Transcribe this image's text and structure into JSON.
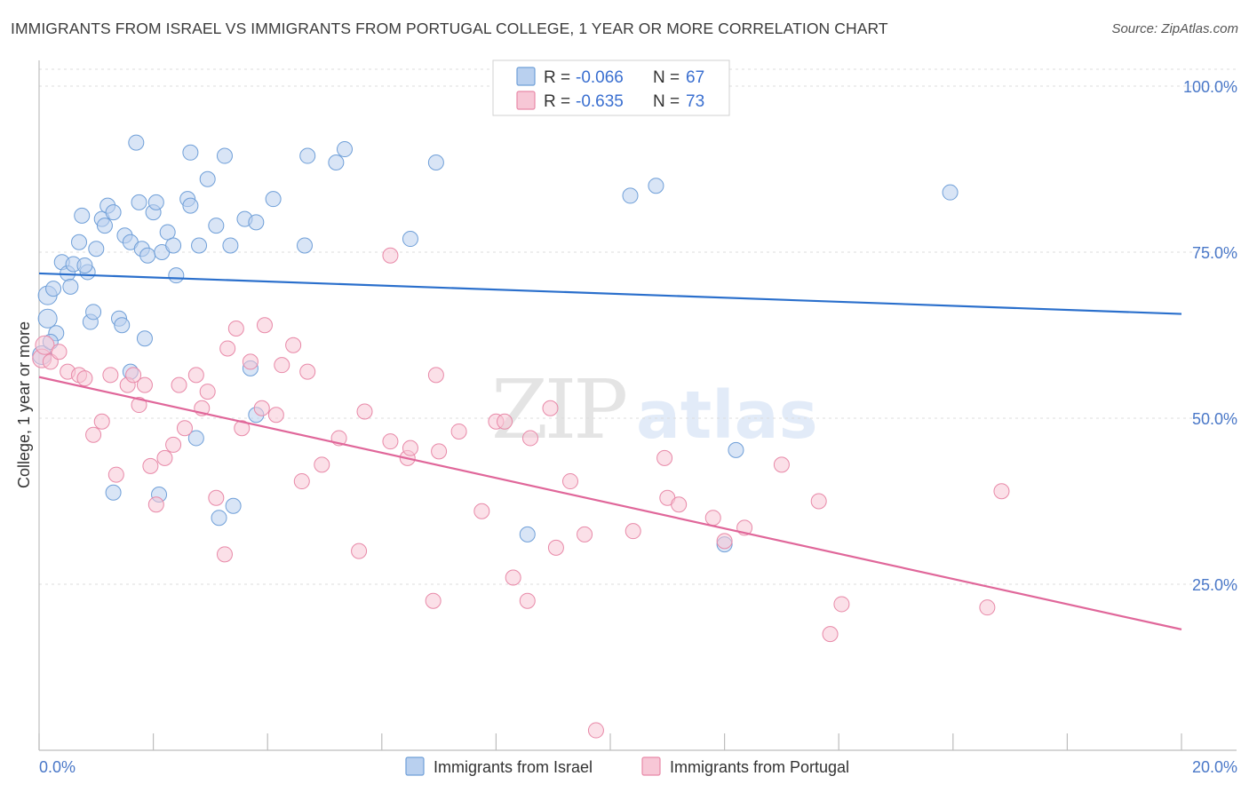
{
  "title": "IMMIGRANTS FROM ISRAEL VS IMMIGRANTS FROM PORTUGAL COLLEGE, 1 YEAR OR MORE CORRELATION CHART",
  "source": "Source: ZipAtlas.com",
  "watermark": "ZIPatlas",
  "chart_data": {
    "type": "scatter",
    "xlabel": "",
    "ylabel": "College, 1 year or more",
    "xlim": [
      0,
      20
    ],
    "ylim": [
      0,
      100
    ],
    "x_tick_labels": [
      "0.0%",
      "20.0%"
    ],
    "y_ticks": [
      25,
      50,
      75,
      100
    ],
    "y_tick_labels": [
      "25.0%",
      "50.0%",
      "75.0%",
      "100.0%"
    ],
    "grid": true,
    "legend_position": "top-center",
    "stats": [
      {
        "R_label": "R =",
        "R": "-0.066",
        "N_label": "N =",
        "N": "67"
      },
      {
        "R_label": "R =",
        "R": "-0.635",
        "N_label": "N =",
        "N": "73"
      }
    ],
    "series": [
      {
        "name": "Immigrants from Israel",
        "color": "#6f9fd8",
        "fill": "#b9d0ef",
        "trend": {
          "x0": 0,
          "y0": 71.8,
          "x1": 20,
          "y1": 65.7,
          "color": "#2a6fcc"
        },
        "points": [
          [
            0.15,
            68.5
          ],
          [
            0.15,
            65
          ],
          [
            0.25,
            69.5
          ],
          [
            0.3,
            62.8
          ],
          [
            0.4,
            73.5
          ],
          [
            0.5,
            71.8
          ],
          [
            0.55,
            69.8
          ],
          [
            0.6,
            73.2
          ],
          [
            0.7,
            76.5
          ],
          [
            0.75,
            80.5
          ],
          [
            0.85,
            72
          ],
          [
            0.9,
            64.5
          ],
          [
            0.95,
            66
          ],
          [
            1.0,
            75.5
          ],
          [
            1.1,
            80
          ],
          [
            1.15,
            79
          ],
          [
            1.2,
            82
          ],
          [
            1.3,
            81
          ],
          [
            1.4,
            65
          ],
          [
            1.45,
            64
          ],
          [
            1.5,
            77.5
          ],
          [
            1.6,
            76.5
          ],
          [
            1.7,
            91.5
          ],
          [
            1.75,
            82.5
          ],
          [
            1.8,
            75.5
          ],
          [
            1.85,
            62
          ],
          [
            1.9,
            74.5
          ],
          [
            2.0,
            81
          ],
          [
            2.05,
            82.5
          ],
          [
            2.15,
            75
          ],
          [
            2.25,
            78
          ],
          [
            2.35,
            76
          ],
          [
            2.4,
            71.5
          ],
          [
            2.6,
            83
          ],
          [
            2.65,
            82
          ],
          [
            2.65,
            90
          ],
          [
            2.8,
            76
          ],
          [
            2.95,
            86
          ],
          [
            3.1,
            79
          ],
          [
            3.25,
            89.5
          ],
          [
            3.35,
            76
          ],
          [
            3.6,
            80
          ],
          [
            3.8,
            79.5
          ],
          [
            4.1,
            83
          ],
          [
            4.65,
            76
          ],
          [
            4.7,
            89.5
          ],
          [
            5.2,
            88.5
          ],
          [
            5.35,
            90.5
          ],
          [
            6.5,
            77
          ],
          [
            6.95,
            88.5
          ],
          [
            10.35,
            83.5
          ],
          [
            10.8,
            85
          ],
          [
            15.95,
            84
          ],
          [
            0.8,
            73
          ],
          [
            1.6,
            57
          ],
          [
            2.75,
            47
          ],
          [
            1.3,
            38.8
          ],
          [
            2.1,
            38.5
          ],
          [
            3.15,
            35
          ],
          [
            3.4,
            36.8
          ],
          [
            3.7,
            57.5
          ],
          [
            3.8,
            50.5
          ],
          [
            8.55,
            32.5
          ],
          [
            12.0,
            31
          ],
          [
            12.2,
            45.2
          ],
          [
            0.05,
            59.5
          ],
          [
            0.2,
            61.5
          ]
        ]
      },
      {
        "name": "Immigrants from Portugal",
        "color": "#e889a8",
        "fill": "#f7c7d6",
        "trend": {
          "x0": 0,
          "y0": 56.2,
          "x1": 20,
          "y1": 18.2,
          "color": "#e0679a"
        },
        "points": [
          [
            0.05,
            59
          ],
          [
            0.1,
            61
          ],
          [
            0.2,
            58.5
          ],
          [
            0.35,
            60
          ],
          [
            0.5,
            57
          ],
          [
            0.7,
            56.5
          ],
          [
            0.8,
            56
          ],
          [
            0.95,
            47.5
          ],
          [
            1.1,
            49.5
          ],
          [
            1.25,
            56.5
          ],
          [
            1.35,
            41.5
          ],
          [
            1.55,
            55
          ],
          [
            1.65,
            56.5
          ],
          [
            1.75,
            52
          ],
          [
            1.85,
            55
          ],
          [
            1.95,
            42.8
          ],
          [
            2.05,
            37
          ],
          [
            2.2,
            44
          ],
          [
            2.35,
            46
          ],
          [
            2.45,
            55
          ],
          [
            2.55,
            48.5
          ],
          [
            2.75,
            56.5
          ],
          [
            2.85,
            51.5
          ],
          [
            2.95,
            54
          ],
          [
            3.1,
            38
          ],
          [
            3.25,
            29.5
          ],
          [
            3.3,
            60.5
          ],
          [
            3.45,
            63.5
          ],
          [
            3.55,
            48.5
          ],
          [
            3.7,
            58.5
          ],
          [
            3.9,
            51.5
          ],
          [
            3.95,
            64
          ],
          [
            4.15,
            50.5
          ],
          [
            4.25,
            58
          ],
          [
            4.45,
            61
          ],
          [
            4.6,
            40.5
          ],
          [
            4.7,
            57
          ],
          [
            4.95,
            43
          ],
          [
            5.25,
            47
          ],
          [
            5.6,
            30
          ],
          [
            5.7,
            51
          ],
          [
            6.15,
            46.5
          ],
          [
            6.45,
            44
          ],
          [
            6.5,
            45.5
          ],
          [
            6.9,
            22.5
          ],
          [
            6.95,
            56.5
          ],
          [
            7.0,
            45
          ],
          [
            7.35,
            48
          ],
          [
            7.75,
            36
          ],
          [
            8.0,
            49.5
          ],
          [
            8.15,
            49.5
          ],
          [
            8.3,
            26
          ],
          [
            8.55,
            22.5
          ],
          [
            8.6,
            47
          ],
          [
            8.95,
            51.5
          ],
          [
            9.05,
            30.5
          ],
          [
            9.3,
            40.5
          ],
          [
            9.55,
            32.5
          ],
          [
            9.75,
            3
          ],
          [
            10.4,
            33
          ],
          [
            10.95,
            44
          ],
          [
            11.0,
            38
          ],
          [
            11.2,
            37
          ],
          [
            11.8,
            35
          ],
          [
            12.35,
            33.5
          ],
          [
            13.0,
            43
          ],
          [
            13.65,
            37.5
          ],
          [
            13.85,
            17.5
          ],
          [
            14.05,
            22
          ],
          [
            6.15,
            74.5
          ],
          [
            16.6,
            21.5
          ],
          [
            16.85,
            39
          ],
          [
            12.0,
            31.5
          ]
        ]
      }
    ]
  }
}
